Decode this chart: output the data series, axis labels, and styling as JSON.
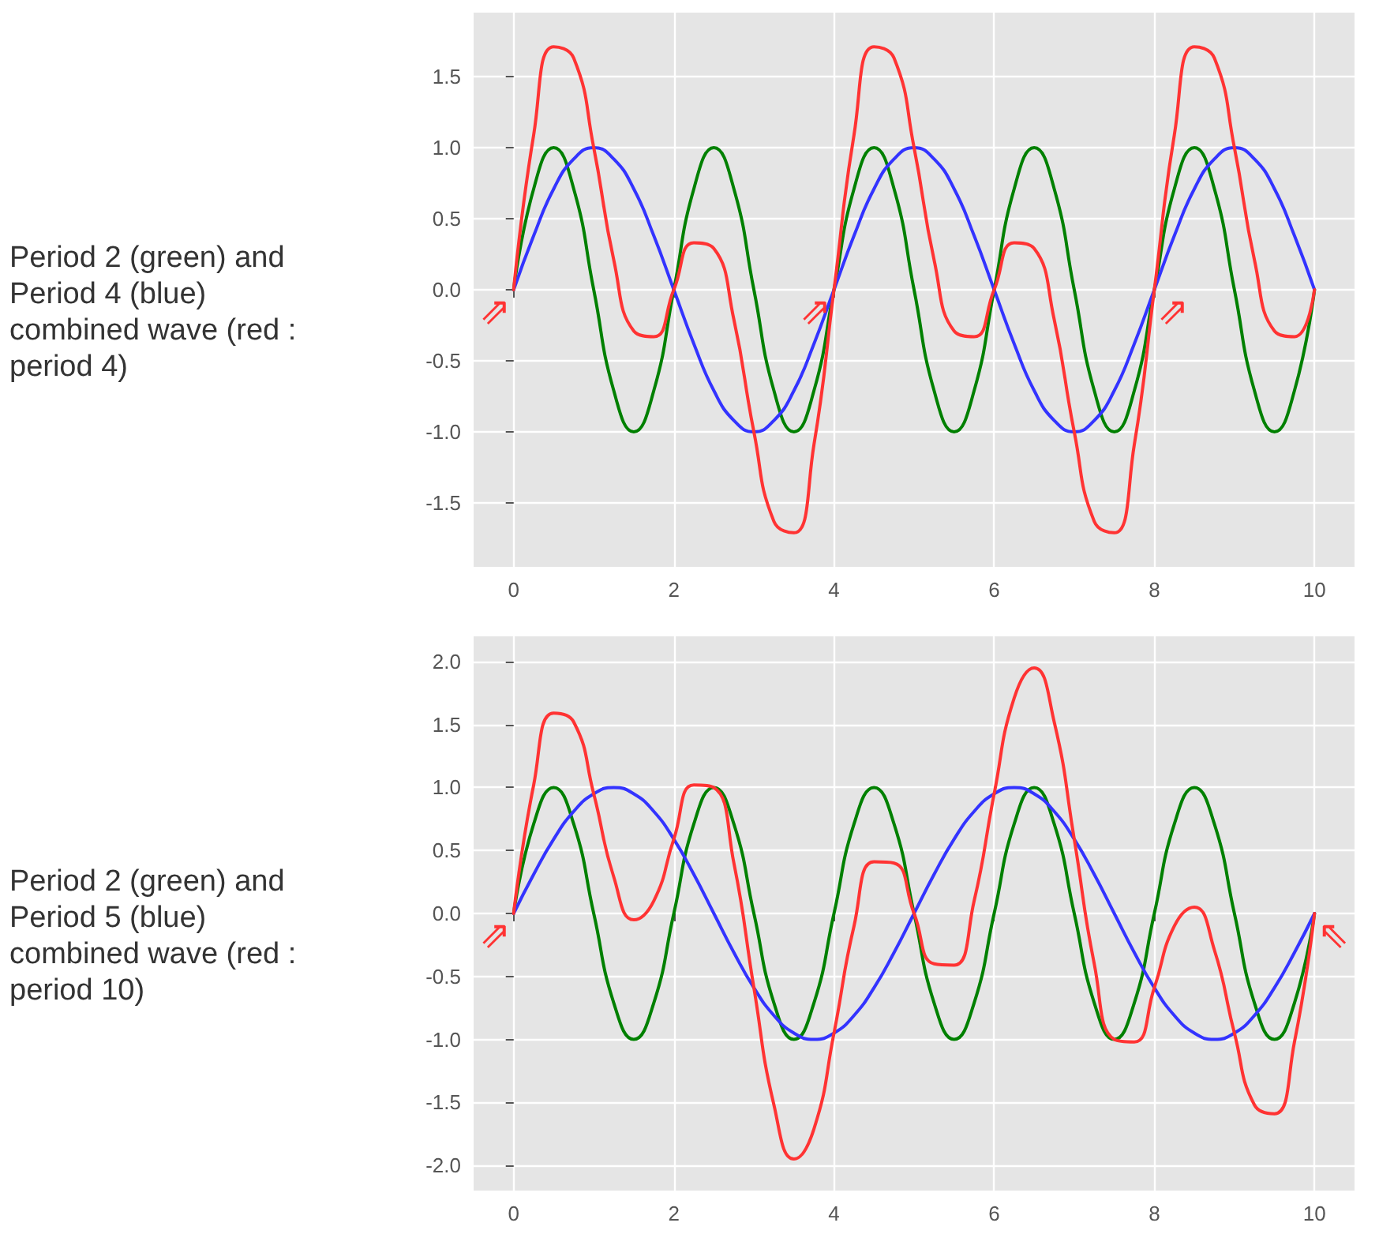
{
  "chart_data": [
    {
      "type": "line",
      "title": "Period 2 (green) and Period 4 (blue) combined wave (red : period 4)",
      "grid": true,
      "marker": "none",
      "line_style": "solid",
      "x": [
        0,
        0.25,
        0.5,
        0.75,
        1,
        1.25,
        1.5,
        1.75,
        2,
        2.25,
        2.5,
        2.75,
        3,
        3.25,
        3.5,
        3.75,
        4,
        4.25,
        4.5,
        4.75,
        5,
        5.25,
        5.5,
        5.75,
        6,
        6.25,
        6.5,
        6.75,
        7,
        7.25,
        7.5,
        7.75,
        8,
        8.25,
        8.5,
        8.75,
        9,
        9.25,
        9.5,
        9.75,
        10
      ],
      "xlim": [
        -0.5,
        10.5
      ],
      "xticks": [
        0,
        2,
        4,
        6,
        8,
        10
      ],
      "ylim": [
        -1.95,
        1.95
      ],
      "yticks": [
        {
          "value": -1.5,
          "label": "-1.5"
        },
        {
          "value": -1,
          "label": "-1.0"
        },
        {
          "value": -0.5,
          "label": "-0.5"
        },
        {
          "value": 0,
          "label": "0.0"
        },
        {
          "value": 0.5,
          "label": "0.5"
        },
        {
          "value": 1,
          "label": "1.0"
        },
        {
          "value": 1.5,
          "label": "1.5"
        }
      ],
      "series": [
        {
          "color": "#008000",
          "values": [
            0,
            0.71,
            1,
            0.71,
            0,
            -0.71,
            -1,
            -0.71,
            0,
            0.71,
            1,
            0.71,
            0,
            -0.71,
            -1,
            -0.71,
            0,
            0.71,
            1,
            0.71,
            0,
            -0.71,
            -1,
            -0.71,
            0,
            0.71,
            1,
            0.71,
            0,
            -0.71,
            -1,
            -0.71,
            0,
            0.71,
            1,
            0.71,
            0,
            -0.71,
            -1,
            -0.71,
            0
          ]
        },
        {
          "color": "#3333ff",
          "values": [
            0,
            0.38,
            0.71,
            0.92,
            1,
            0.92,
            0.71,
            0.38,
            0,
            -0.38,
            -0.71,
            -0.92,
            -1,
            -0.92,
            -0.71,
            -0.38,
            0,
            0.38,
            0.71,
            0.92,
            1,
            0.92,
            0.71,
            0.38,
            0,
            -0.38,
            -0.71,
            -0.92,
            -1,
            -0.92,
            -0.71,
            -0.38,
            0,
            0.38,
            0.71,
            0.92,
            1,
            0.92,
            0.71,
            0.38,
            0
          ]
        },
        {
          "color": "#ff3333",
          "values": [
            0,
            1.09,
            1.71,
            1.63,
            1,
            0.21,
            -0.29,
            -0.33,
            0,
            0.33,
            0.29,
            -0.21,
            -1,
            -1.63,
            -1.71,
            -1.09,
            0,
            1.09,
            1.71,
            1.63,
            1,
            0.21,
            -0.29,
            -0.33,
            0,
            0.33,
            0.29,
            -0.21,
            -1,
            -1.63,
            -1.71,
            -1.09,
            0,
            1.09,
            1.71,
            1.63,
            1,
            0.21,
            -0.29,
            -0.33,
            0
          ]
        }
      ],
      "annotations": [
        {
          "text": "⇗",
          "x": 0,
          "y": 0
        },
        {
          "text": "⇗",
          "x": 4,
          "y": 0
        },
        {
          "text": "⇗",
          "x": 8,
          "y": 0
        }
      ]
    },
    {
      "type": "line",
      "title": "Period 2 (green) and Period 5 (blue) combined wave (red : period 10)",
      "grid": true,
      "marker": "none",
      "line_style": "solid",
      "x": [
        0,
        0.25,
        0.5,
        0.75,
        1,
        1.25,
        1.5,
        1.75,
        2,
        2.25,
        2.5,
        2.75,
        3,
        3.25,
        3.5,
        3.75,
        4,
        4.25,
        4.5,
        4.75,
        5,
        5.25,
        5.5,
        5.75,
        6,
        6.25,
        6.5,
        6.75,
        7,
        7.25,
        7.5,
        7.75,
        8,
        8.25,
        8.5,
        8.75,
        9,
        9.25,
        9.5,
        9.75,
        10
      ],
      "xlim": [
        -0.5,
        10.5
      ],
      "xticks": [
        0,
        2,
        4,
        6,
        8,
        10
      ],
      "ylim": [
        -2.2,
        2.2
      ],
      "yticks": [
        {
          "value": -2,
          "label": "-2.0"
        },
        {
          "value": -1.5,
          "label": "-1.5"
        },
        {
          "value": -1,
          "label": "-1.0"
        },
        {
          "value": -0.5,
          "label": "-0.5"
        },
        {
          "value": 0,
          "label": "0.0"
        },
        {
          "value": 0.5,
          "label": "0.5"
        },
        {
          "value": 1,
          "label": "1.0"
        },
        {
          "value": 1.5,
          "label": "1.5"
        },
        {
          "value": 2,
          "label": "2.0"
        }
      ],
      "series": [
        {
          "color": "#008000",
          "values": [
            0,
            0.71,
            1,
            0.71,
            0,
            -0.71,
            -1,
            -0.71,
            0,
            0.71,
            1,
            0.71,
            0,
            -0.71,
            -1,
            -0.71,
            0,
            0.71,
            1,
            0.71,
            0,
            -0.71,
            -1,
            -0.71,
            0,
            0.71,
            1,
            0.71,
            0,
            -0.71,
            -1,
            -0.71,
            0,
            0.71,
            1,
            0.71,
            0,
            -0.71,
            -1,
            -0.71,
            0
          ]
        },
        {
          "color": "#3333ff",
          "values": [
            0,
            0.31,
            0.59,
            0.81,
            0.95,
            1,
            0.95,
            0.81,
            0.59,
            0.31,
            0,
            -0.31,
            -0.59,
            -0.81,
            -0.95,
            -1,
            -0.95,
            -0.81,
            -0.59,
            -0.31,
            0,
            0.31,
            0.59,
            0.81,
            0.95,
            1,
            0.95,
            0.81,
            0.59,
            0.31,
            0,
            -0.31,
            -0.59,
            -0.81,
            -0.95,
            -1,
            -0.95,
            -0.81,
            -0.59,
            -0.31,
            0
          ]
        },
        {
          "color": "#ff3333",
          "values": [
            0,
            1.02,
            1.59,
            1.52,
            0.95,
            0.29,
            -0.05,
            0.1,
            0.59,
            1.02,
            1,
            0.4,
            -0.59,
            -1.52,
            -1.95,
            -1.71,
            -0.95,
            -0.1,
            0.41,
            0.4,
            0,
            -0.4,
            -0.41,
            0.1,
            0.95,
            1.71,
            1.95,
            1.52,
            0.59,
            -0.4,
            -1,
            -1.02,
            -0.59,
            -0.1,
            0.05,
            -0.29,
            -0.95,
            -1.52,
            -1.59,
            -1.02,
            0
          ]
        }
      ],
      "annotations": [
        {
          "text": "⇗",
          "x": 0,
          "y": 0
        },
        {
          "text": "⇖",
          "x": 10,
          "y": 0
        }
      ]
    }
  ]
}
